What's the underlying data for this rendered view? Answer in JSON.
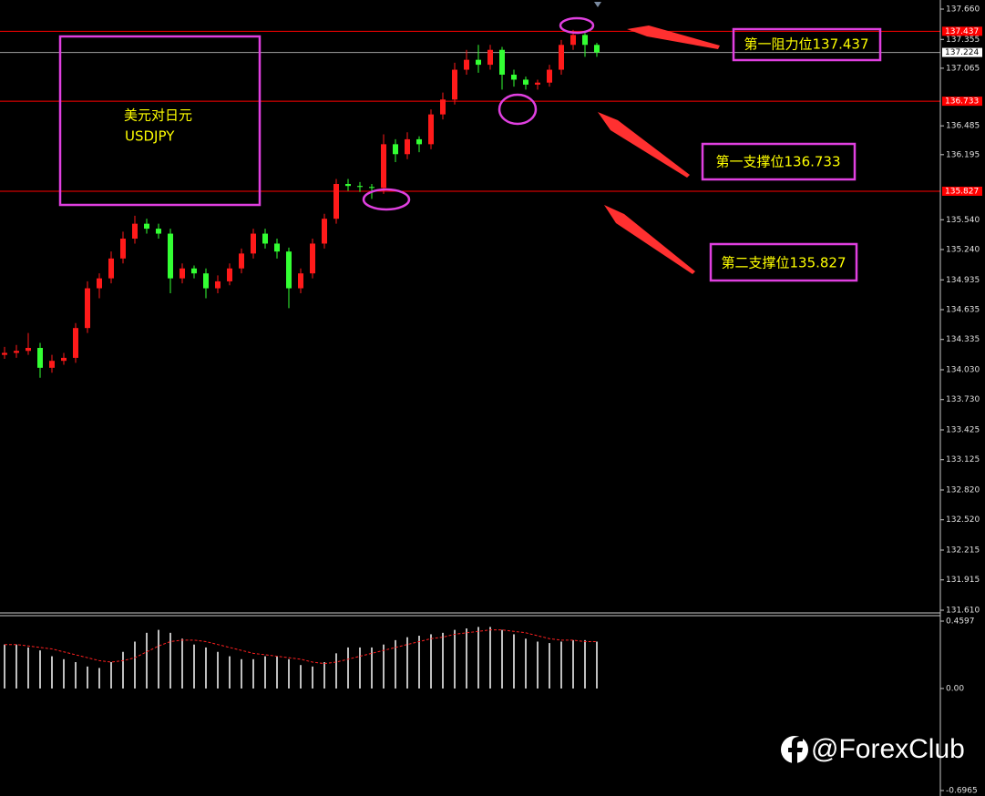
{
  "chart_data": [
    {
      "type": "candlestick",
      "ylim": [
        131.61,
        137.66
      ],
      "yticks": [
        {
          "value": 137.66,
          "label": "137.660"
        },
        137.355,
        137.065,
        136.485,
        136.195,
        {
          "value": 135.54,
          "label": "135.540"
        },
        {
          "value": 135.24,
          "label": "135.240"
        },
        134.935,
        134.635,
        134.335,
        {
          "value": 134.03,
          "label": "134.030"
        },
        {
          "value": 133.73,
          "label": "133.730"
        },
        133.425,
        133.125,
        {
          "value": 132.82,
          "label": "132.820"
        },
        {
          "value": 132.52,
          "label": "132.520"
        },
        132.215,
        131.915,
        {
          "value": 131.61,
          "label": "131.610"
        }
      ],
      "open": [
        134.18,
        134.2,
        134.22,
        134.25,
        134.05,
        134.12,
        134.15,
        134.45,
        134.85,
        134.95,
        135.15,
        135.35,
        135.5,
        135.45,
        135.4,
        134.95,
        135.05,
        135.0,
        134.85,
        134.92,
        135.05,
        135.2,
        135.4,
        135.3,
        135.22,
        134.85,
        135.0,
        135.3,
        135.55,
        135.9,
        135.88,
        135.87,
        135.86,
        136.3,
        136.2,
        136.35,
        136.3,
        136.6,
        136.75,
        137.05,
        137.15,
        137.1,
        137.25,
        137.0,
        136.95,
        136.9,
        136.92,
        137.05,
        137.3,
        137.4,
        137.3
      ],
      "high": [
        134.26,
        134.28,
        134.4,
        134.3,
        134.18,
        134.2,
        134.5,
        134.92,
        135.0,
        135.22,
        135.42,
        135.58,
        135.55,
        135.5,
        135.45,
        135.1,
        135.08,
        135.05,
        134.98,
        135.1,
        135.25,
        135.45,
        135.45,
        135.35,
        135.26,
        135.05,
        135.35,
        135.6,
        135.95,
        135.95,
        135.92,
        135.9,
        136.4,
        136.35,
        136.42,
        136.38,
        136.65,
        136.82,
        137.12,
        137.25,
        137.3,
        137.3,
        137.28,
        137.05,
        136.98,
        136.95,
        137.1,
        137.35,
        137.45,
        137.42,
        137.32
      ],
      "low": [
        134.14,
        134.15,
        134.18,
        133.95,
        134.0,
        134.08,
        134.1,
        134.4,
        134.75,
        134.9,
        135.1,
        135.3,
        135.4,
        135.35,
        134.8,
        134.9,
        134.95,
        134.75,
        134.8,
        134.88,
        135.0,
        135.15,
        135.25,
        135.15,
        134.65,
        134.8,
        134.95,
        135.25,
        135.5,
        135.83,
        135.82,
        135.75,
        135.8,
        136.12,
        136.15,
        136.22,
        136.25,
        136.55,
        136.7,
        137.0,
        137.02,
        137.05,
        136.85,
        136.88,
        136.85,
        136.85,
        136.88,
        137.0,
        137.25,
        137.18,
        137.18
      ],
      "close": [
        134.2,
        134.22,
        134.25,
        134.05,
        134.12,
        134.15,
        134.45,
        134.85,
        134.95,
        135.15,
        135.35,
        135.5,
        135.45,
        135.4,
        134.95,
        135.05,
        135.0,
        134.85,
        134.92,
        135.05,
        135.2,
        135.4,
        135.3,
        135.22,
        134.85,
        135.0,
        135.3,
        135.55,
        135.9,
        135.88,
        135.87,
        135.86,
        136.3,
        136.2,
        136.35,
        136.3,
        136.6,
        136.75,
        137.05,
        137.15,
        137.1,
        137.25,
        137.0,
        136.95,
        136.9,
        136.92,
        137.05,
        137.3,
        137.4,
        137.3,
        137.224
      ],
      "up_color": "#ff1a1a",
      "down_color": "#33ff33",
      "levels": [
        {
          "value": 137.437,
          "label": "137.437",
          "color": "#ff0000"
        },
        {
          "value": 137.224,
          "label": "137.224",
          "color": "#a0a0a0"
        },
        {
          "value": 136.733,
          "label": "136.733",
          "color": "#ff0000"
        },
        {
          "value": 135.827,
          "label": "135.827",
          "color": "#ff0000"
        }
      ]
    },
    {
      "type": "bar",
      "ylim": [
        -0.6965,
        0.4597
      ],
      "yticks": [
        0.4597,
        {
          "value": 0,
          "label": "0.00"
        },
        -0.6965
      ],
      "values": [
        0.3,
        0.3,
        0.28,
        0.26,
        0.22,
        0.2,
        0.18,
        0.15,
        0.14,
        0.18,
        0.25,
        0.32,
        0.38,
        0.4,
        0.38,
        0.34,
        0.3,
        0.28,
        0.25,
        0.22,
        0.2,
        0.2,
        0.22,
        0.22,
        0.2,
        0.16,
        0.15,
        0.18,
        0.24,
        0.28,
        0.28,
        0.28,
        0.3,
        0.33,
        0.35,
        0.36,
        0.37,
        0.38,
        0.4,
        0.41,
        0.42,
        0.42,
        0.4,
        0.37,
        0.34,
        0.32,
        0.31,
        0.32,
        0.33,
        0.33,
        0.32
      ],
      "color": "#ffffff",
      "signal": [
        0.3,
        0.3,
        0.29,
        0.28,
        0.27,
        0.25,
        0.23,
        0.21,
        0.19,
        0.18,
        0.19,
        0.21,
        0.25,
        0.29,
        0.32,
        0.33,
        0.33,
        0.32,
        0.3,
        0.28,
        0.26,
        0.24,
        0.23,
        0.22,
        0.21,
        0.2,
        0.18,
        0.17,
        0.18,
        0.2,
        0.22,
        0.24,
        0.26,
        0.28,
        0.3,
        0.32,
        0.34,
        0.35,
        0.37,
        0.38,
        0.39,
        0.4,
        0.4,
        0.39,
        0.38,
        0.36,
        0.34,
        0.33,
        0.33,
        0.32,
        0.32
      ],
      "signal_color": "#ff2020"
    }
  ],
  "annotations": {
    "pair": [
      "美元对日元",
      "USDJPY"
    ],
    "labels": [
      "第一阻力位137.437",
      "第一支撑位136.733",
      "第二支撑位135.827"
    ],
    "watermark": "@ForexClub"
  }
}
